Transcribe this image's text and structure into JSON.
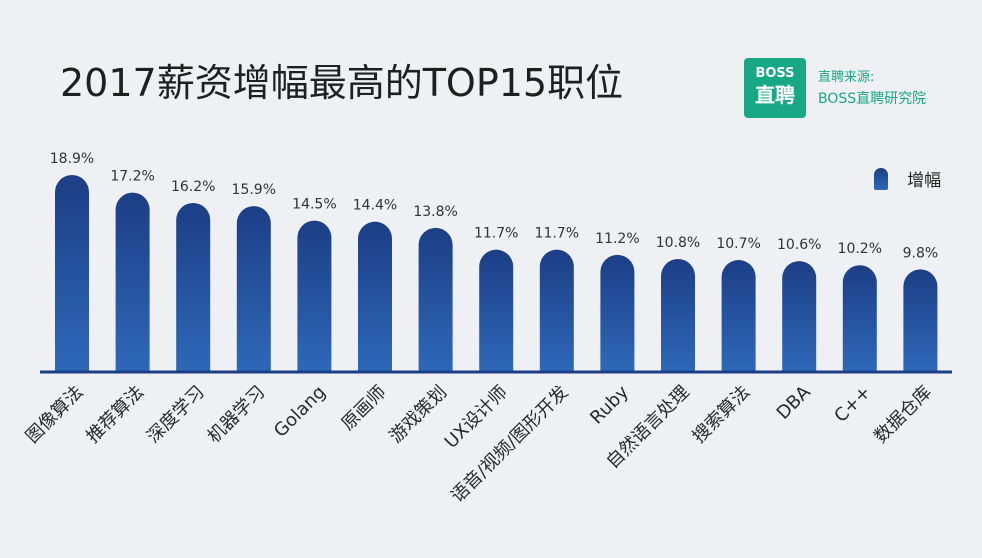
{
  "title": "2017薪资增幅最高的TOP15职位",
  "logo": {
    "line1": "BOSS",
    "line2": "直聘"
  },
  "brand": {
    "line1": "直聘来源:",
    "line2": "BOSS直聘研究院"
  },
  "colors": {
    "bar_top": "#1c3e86",
    "bar_bottom": "#2e68b8",
    "accent": "#19a886"
  },
  "chart_data": {
    "type": "bar",
    "title": "2017薪资增幅最高的TOP15职位",
    "categories": [
      "图像算法",
      "推荐算法",
      "深度学习",
      "机器学习",
      "Golang",
      "原画师",
      "游戏策划",
      "UX设计师",
      "语音/视频/图形开发",
      "Ruby",
      "自然语言处理",
      "搜索算法",
      "DBA",
      "C++",
      "数据仓库"
    ],
    "series": [
      {
        "name": "增幅",
        "values": [
          18.9,
          17.2,
          16.2,
          15.9,
          14.5,
          14.4,
          13.8,
          11.7,
          11.7,
          11.2,
          10.8,
          10.7,
          10.6,
          10.2,
          9.8
        ]
      }
    ],
    "data_labels": [
      "18.9%",
      "17.2%",
      "16.2%",
      "15.9%",
      "14.5%",
      "14.4%",
      "13.8%",
      "11.7%",
      "11.7%",
      "11.2%",
      "10.8%",
      "10.7%",
      "10.6%",
      "10.2%",
      "9.8%"
    ],
    "legend": {
      "position": "top-right"
    },
    "grid": false
  }
}
